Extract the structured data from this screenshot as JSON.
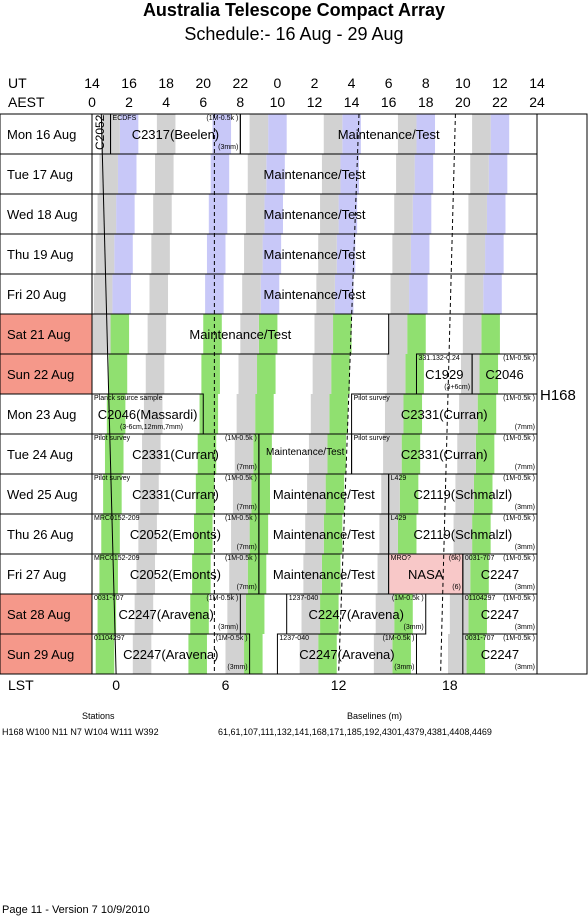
{
  "title": "Australia Telescope Compact Array",
  "subtitle": "Schedule:- 16 Aug - 29 Aug",
  "ut_label": "UT",
  "aest_label": "AEST",
  "ut_ticks": [
    "14",
    "16",
    "18",
    "20",
    "22",
    "0",
    "2",
    "4",
    "6",
    "8",
    "10",
    "12",
    "14"
  ],
  "aest_ticks": [
    "0",
    "2",
    "4",
    "6",
    "8",
    "10",
    "12",
    "14",
    "16",
    "18",
    "20",
    "22",
    "24"
  ],
  "lst_label": "LST",
  "lst_ticks": [
    "0",
    "6",
    "12",
    "18"
  ],
  "config": "H168",
  "days": [
    {
      "label": "Mon  16 Aug",
      "weekend": false
    },
    {
      "label": "Tue   17 Aug",
      "weekend": false
    },
    {
      "label": "Wed  18 Aug",
      "weekend": false
    },
    {
      "label": "Thu   19 Aug",
      "weekend": false
    },
    {
      "label": "Fri    20 Aug",
      "weekend": false
    },
    {
      "label": "Sat   21 Aug",
      "weekend": true
    },
    {
      "label": "Sun  22 Aug",
      "weekend": true
    },
    {
      "label": "Mon  23 Aug",
      "weekend": false
    },
    {
      "label": "Tue   24 Aug",
      "weekend": false
    },
    {
      "label": "Wed  25 Aug",
      "weekend": false
    },
    {
      "label": "Thu   26 Aug",
      "weekend": false
    },
    {
      "label": "Fri    27 Aug",
      "weekend": false
    },
    {
      "label": "Sat   28 Aug",
      "weekend": true
    },
    {
      "label": "Sun  29 Aug",
      "weekend": true
    }
  ],
  "blocks": [
    {
      "row": 0,
      "h0": 0,
      "h1": 1,
      "main": "C2052",
      "vertical": true
    },
    {
      "row": 0,
      "h0": 1,
      "h1": 8,
      "main": "C2317(Beelen)",
      "tl": "ECDFS",
      "tr": "(1M-0.5k )",
      "br": "(3mm)"
    },
    {
      "row": 0,
      "h0": 8,
      "h1": 24,
      "main": "Maintenance/Test"
    },
    {
      "row": 1,
      "h0": 0,
      "h1": 24,
      "main": "Maintenance/Test"
    },
    {
      "row": 2,
      "h0": 0,
      "h1": 24,
      "main": "Maintenance/Test"
    },
    {
      "row": 3,
      "h0": 0,
      "h1": 24,
      "main": "Maintenance/Test"
    },
    {
      "row": 4,
      "h0": 0,
      "h1": 24,
      "main": "Maintenance/Test"
    },
    {
      "row": 5,
      "h0": 0,
      "h1": 16,
      "main": "Maintenance/Test"
    },
    {
      "row": 6,
      "h0": 17.5,
      "h1": 20.5,
      "main": "C1929",
      "tl": "331.132-0.24",
      "br": "(3+6cm)"
    },
    {
      "row": 6,
      "h0": 20.5,
      "h1": 24,
      "main": "C2046",
      "tr": "(1M-0.5k )"
    },
    {
      "row": 7,
      "h0": 0,
      "h1": 6,
      "main": "C2046(Massardi)",
      "tl": "Planck source sample",
      "bl": "(3-6cm,12mm,7mm)"
    },
    {
      "row": 7,
      "h0": 14,
      "h1": 24,
      "main": "C2331(Curran)",
      "tl": "Pilot survey",
      "tr": "(1M-0.5k )",
      "br": "(7mm)"
    },
    {
      "row": 8,
      "h0": 0,
      "h1": 9,
      "main": "C2331(Curran)",
      "tl": "Pilot survey",
      "tr": "(1M-0.5k )",
      "br": "(7mm)"
    },
    {
      "row": 8,
      "h0": 9,
      "h1": 14,
      "main": "Maintenance/Test",
      "smallmain": true
    },
    {
      "row": 8,
      "h0": 14,
      "h1": 24,
      "main": "C2331(Curran)",
      "tl": "Pilot survey",
      "tr": "(1M-0.5k )",
      "br": "(7mm)"
    },
    {
      "row": 9,
      "h0": 0,
      "h1": 9,
      "main": "C2331(Curran)",
      "tl": "Pilot survey",
      "tr": "(1M-0.5k )",
      "br": "(7mm)"
    },
    {
      "row": 9,
      "h0": 9,
      "h1": 16,
      "main": "Maintenance/Test"
    },
    {
      "row": 9,
      "h0": 16,
      "h1": 24,
      "main": "C2119(Schmalzl)",
      "tl": "L429",
      "tr": "(1M-0.5k )",
      "br": "(3mm)"
    },
    {
      "row": 10,
      "h0": 0,
      "h1": 9,
      "main": "C2052(Emonts)",
      "tl": "MRC0152-209",
      "tr": "(1M-0.5k )",
      "br": "(7mm)"
    },
    {
      "row": 10,
      "h0": 9,
      "h1": 16,
      "main": "Maintenance/Test"
    },
    {
      "row": 10,
      "h0": 16,
      "h1": 24,
      "main": "C2119(Schmalzl)",
      "tl": "L429",
      "tr": "(1M-0.5k )",
      "br": "(3mm)"
    },
    {
      "row": 11,
      "h0": 0,
      "h1": 9,
      "main": "C2052(Emonts)",
      "tl": "MRC0152-209",
      "tr": "(1M-0.5k )",
      "br": "(7mm)"
    },
    {
      "row": 11,
      "h0": 9,
      "h1": 16,
      "main": "Maintenance/Test"
    },
    {
      "row": 11,
      "h0": 16,
      "h1": 20,
      "main": "NASA",
      "tl": "MRO?",
      "tr": "(6k)",
      "br": "(6)",
      "red": true
    },
    {
      "row": 11,
      "h0": 20,
      "h1": 24,
      "main": "C2247",
      "tl": "0031-707",
      "tr": "(1M-0.5k )",
      "br": "(3mm)"
    },
    {
      "row": 12,
      "h0": 0,
      "h1": 8,
      "main": "C2247(Aravena)",
      "tl": "0031-707",
      "tr": "(1M-0.5k )",
      "br": "(3mm)"
    },
    {
      "row": 12,
      "h0": 10.5,
      "h1": 18,
      "main": "C2247(Aravena)",
      "tl": "1237-040",
      "tr": "(1M-0.5k )",
      "br": "(3mm)"
    },
    {
      "row": 12,
      "h0": 20,
      "h1": 24,
      "main": "C2247",
      "tl": "01104297",
      "tr": "(1M-0.5k )",
      "br": "(3mm)"
    },
    {
      "row": 13,
      "h0": 0,
      "h1": 8.5,
      "main": "C2247(Aravena)",
      "tl": "01104297",
      "tr": "(1M-0.5k )",
      "br": "(3mm)"
    },
    {
      "row": 13,
      "h0": 10,
      "h1": 17.5,
      "main": "C2247(Aravena)",
      "tl": "1237-040",
      "tr": "(1M-0.5k )",
      "br": "(3mm)"
    },
    {
      "row": 13,
      "h0": 20,
      "h1": 24,
      "main": "C2247",
      "tl": "0031-707",
      "tr": "(1M-0.5k )",
      "br": "(3mm)"
    }
  ],
  "stations_label": "Stations",
  "stations": "H168   W100  N11  N7  W104  W111  W392",
  "baselines_label": "Baselines (m)",
  "baselines": "61,61,107,111,132,141,168,171,185,192,4301,4379,4381,4408,4469",
  "footer": "Page 11 - Version 7  10/9/2010",
  "colors": {
    "blue": "#c8c8f8",
    "grey": "#d2d2d2",
    "green": "#90e070",
    "weekend": "#f5988a",
    "nasa": "#f8c8c8"
  }
}
